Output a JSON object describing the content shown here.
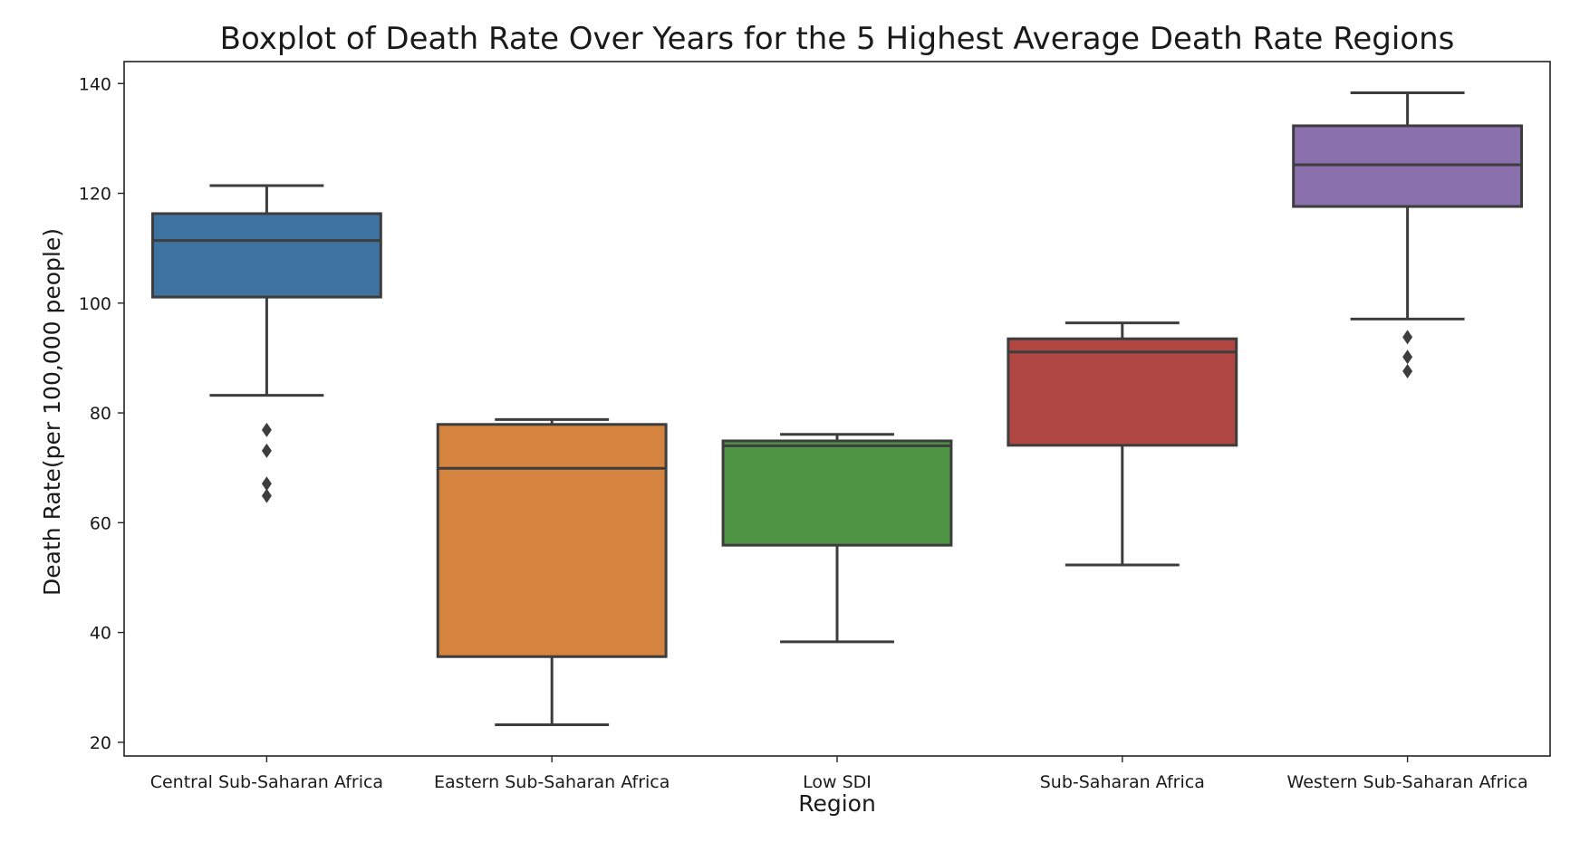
{
  "chart_data": {
    "type": "boxplot",
    "title": "Boxplot of Death Rate Over Years for the 5 Highest Average Death Rate Regions",
    "xlabel": "Region",
    "ylabel": "Death Rate(per 100,000 people)",
    "ylim": [
      17.5,
      144
    ],
    "yticks": [
      20,
      40,
      60,
      80,
      100,
      120,
      140
    ],
    "grid": false,
    "categories": [
      "Central Sub-Saharan Africa",
      "Eastern Sub-Saharan Africa",
      "Low SDI",
      "Sub-Saharan Africa",
      "Western Sub-Saharan Africa"
    ],
    "boxes": [
      {
        "category": "Central Sub-Saharan Africa",
        "color": "#3e72a1",
        "whisker_low": 83.2,
        "q1": 101.1,
        "median": 111.4,
        "q3": 116.3,
        "whisker_high": 121.4,
        "outliers": [
          76.9,
          73.1,
          67.1,
          64.9
        ]
      },
      {
        "category": "Eastern Sub-Saharan Africa",
        "color": "#d4843e",
        "whisker_low": 23.2,
        "q1": 35.6,
        "median": 69.9,
        "q3": 77.9,
        "whisker_high": 78.8,
        "outliers": []
      },
      {
        "category": "Low SDI",
        "color": "#4f9345",
        "whisker_low": 38.3,
        "q1": 55.9,
        "median": 74.0,
        "q3": 74.9,
        "whisker_high": 76.1,
        "outliers": []
      },
      {
        "category": "Sub-Saharan Africa",
        "color": "#b04743",
        "whisker_low": 52.3,
        "q1": 74.1,
        "median": 91.1,
        "q3": 93.5,
        "whisker_high": 96.4,
        "outliers": []
      },
      {
        "category": "Western Sub-Saharan Africa",
        "color": "#8a71ad",
        "whisker_low": 97.1,
        "q1": 117.6,
        "median": 125.2,
        "q3": 132.3,
        "whisker_high": 138.3,
        "outliers": [
          93.8,
          90.2,
          87.6
        ]
      }
    ]
  }
}
